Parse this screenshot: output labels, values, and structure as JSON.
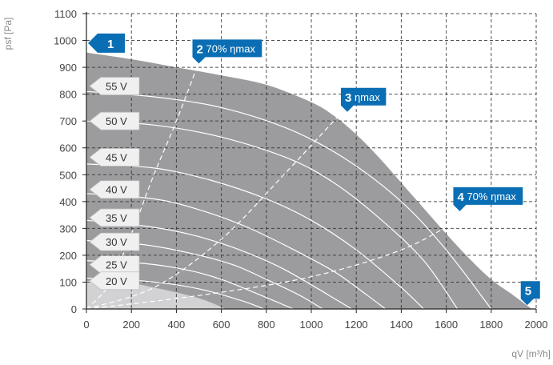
{
  "chart_data": {
    "type": "area",
    "xlabel": "qV [m³/h]",
    "ylabel": "psf [Pa]",
    "xlim": [
      0,
      2000
    ],
    "ylim": [
      0,
      1100
    ],
    "x_ticks": [
      "0",
      "200",
      "400",
      "600",
      "800",
      "1000",
      "1200",
      "1400",
      "1600",
      "1800",
      "2000"
    ],
    "y_ticks": [
      "0",
      "100",
      "200",
      "300",
      "400",
      "500",
      "600",
      "700",
      "800",
      "900",
      "1000",
      "1100"
    ],
    "grid": true,
    "colors": {
      "envelope": "#9c9c9e",
      "low_region": "#d2d2d4",
      "marker": "#0a6eb4",
      "curves": "#ffffff"
    },
    "envelope": {
      "x": [
        0,
        200,
        400,
        600,
        800,
        1000,
        1100,
        1200,
        1300,
        1400,
        1500,
        1600,
        1700,
        1800,
        1900,
        1980
      ],
      "y": [
        955,
        930,
        900,
        870,
        835,
        770,
        720,
        650,
        565,
        470,
        375,
        280,
        190,
        110,
        50,
        0
      ]
    },
    "low_region": {
      "x": [
        0,
        200,
        300,
        400,
        500,
        560,
        620
      ],
      "y": [
        105,
        95,
        80,
        62,
        40,
        22,
        0
      ]
    },
    "voltage_curves": [
      {
        "name": "55 V",
        "x": [
          0,
          300,
          600,
          900,
          1150,
          1400,
          1600,
          1800
        ],
        "y": [
          810,
          790,
          750,
          670,
          560,
          400,
          220,
          0
        ]
      },
      {
        "name": "50 V",
        "x": [
          0,
          300,
          600,
          900,
          1100,
          1300,
          1500,
          1650
        ],
        "y": [
          700,
          685,
          640,
          560,
          470,
          340,
          180,
          0
        ]
      },
      {
        "name": "45 V",
        "x": [
          0,
          300,
          550,
          800,
          1000,
          1200,
          1400,
          1500
        ],
        "y": [
          540,
          525,
          480,
          410,
          330,
          220,
          80,
          0
        ]
      },
      {
        "name": "40 V",
        "x": [
          0,
          300,
          500,
          700,
          900,
          1100,
          1250,
          1330
        ],
        "y": [
          430,
          410,
          370,
          310,
          230,
          140,
          50,
          0
        ]
      },
      {
        "name": "35 V",
        "x": [
          0,
          250,
          450,
          650,
          850,
          1000,
          1100,
          1180
        ],
        "y": [
          330,
          310,
          280,
          230,
          160,
          90,
          40,
          0
        ]
      },
      {
        "name": "30 V",
        "x": [
          0,
          250,
          450,
          650,
          800,
          950,
          1050
        ],
        "y": [
          255,
          240,
          210,
          165,
          110,
          50,
          0
        ]
      },
      {
        "name": "25 V",
        "x": [
          0,
          250,
          450,
          600,
          750,
          850,
          920
        ],
        "y": [
          180,
          170,
          145,
          110,
          60,
          25,
          0
        ]
      },
      {
        "name": "20 V",
        "x": [
          0,
          200,
          400,
          550,
          700,
          790
        ],
        "y": [
          115,
          108,
          90,
          65,
          28,
          0
        ]
      }
    ],
    "efficiency_lines": [
      {
        "name": "70% ηmax",
        "x": [
          0,
          100,
          200,
          300,
          400,
          500
        ],
        "y": [
          0,
          90,
          280,
          500,
          700,
          920
        ]
      },
      {
        "name": "ηmax",
        "x": [
          0,
          300,
          600,
          900,
          1100,
          1170
        ],
        "y": [
          0,
          80,
          260,
          520,
          700,
          760
        ]
      },
      {
        "name": "70% ηmax",
        "x": [
          0,
          500,
          1000,
          1400,
          1650
        ],
        "y": [
          0,
          50,
          120,
          220,
          330
        ]
      }
    ],
    "voltage_labels": [
      "55 V",
      "50 V",
      "45 V",
      "40 V",
      "35 V",
      "30 V",
      "25 V",
      "20 V"
    ],
    "voltage_label_levels": [
      830,
      700,
      565,
      445,
      340,
      250,
      165,
      105
    ],
    "markers": [
      {
        "num": "1",
        "text": "",
        "x": 0,
        "y": 990,
        "pointer": "left"
      },
      {
        "num": "2",
        "text": "70% ηmax",
        "x": 500,
        "y": 920,
        "pointer": "down"
      },
      {
        "num": "3",
        "text": "ηmax",
        "x": 1160,
        "y": 740,
        "pointer": "down"
      },
      {
        "num": "4",
        "text": "70% ηmax",
        "x": 1660,
        "y": 370,
        "pointer": "down"
      },
      {
        "num": "5",
        "text": "",
        "x": 1960,
        "y": 20,
        "pointer": "down"
      }
    ]
  }
}
